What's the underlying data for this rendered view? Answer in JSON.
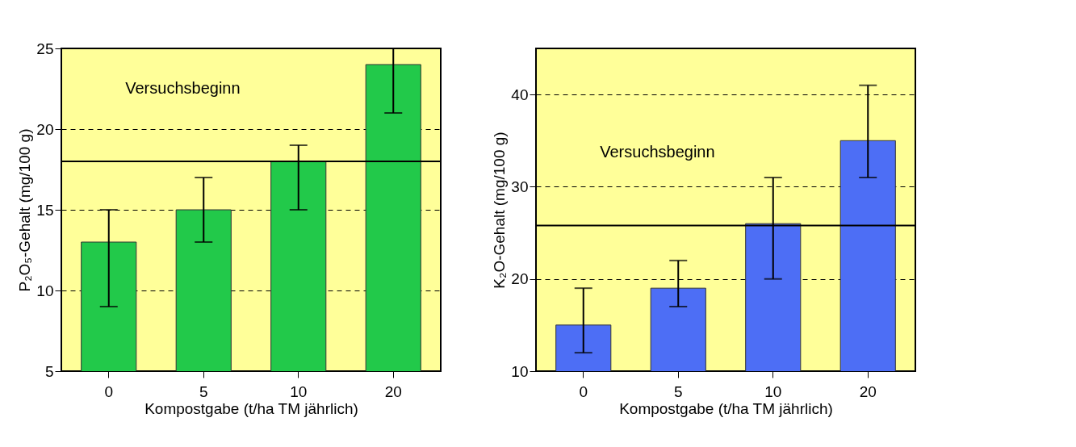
{
  "chart_data": [
    {
      "type": "bar",
      "xlabel": "Kompostgabe (t/ha TM jährlich)",
      "ylabel": "P₂O₅-Gehalt (mg/100 g)",
      "categories": [
        "0",
        "5",
        "10",
        "20"
      ],
      "values": [
        13,
        15,
        18,
        24
      ],
      "color": "#22c94a",
      "errors": [
        [
          9,
          15
        ],
        [
          13,
          17
        ],
        [
          15,
          19
        ],
        [
          21,
          25
        ]
      ],
      "ylim": [
        5,
        25
      ],
      "yticks": [
        5,
        10,
        15,
        20,
        25
      ],
      "grid": "y",
      "ref_lines": [
        {
          "axis": "y",
          "value": 18,
          "label": "Versuchsbeginn",
          "color": "#000000"
        }
      ]
    },
    {
      "type": "bar",
      "xlabel": "Kompostgabe (t/ha TM jährlich)",
      "ylabel": "K₂O-Gehalt (mg/100 g)",
      "categories": [
        "0",
        "5",
        "10",
        "20"
      ],
      "values": [
        15,
        19,
        26,
        35
      ],
      "color": "#4d6ef5",
      "errors": [
        [
          12,
          19
        ],
        [
          17,
          22
        ],
        [
          20,
          31
        ],
        [
          31,
          41
        ]
      ],
      "ylim": [
        10,
        45
      ],
      "yticks": [
        10,
        20,
        30,
        40
      ],
      "grid": "y",
      "ref_lines": [
        {
          "axis": "y",
          "value": 25.8,
          "label": "Versuchsbeginn",
          "color": "#000000"
        }
      ]
    }
  ]
}
